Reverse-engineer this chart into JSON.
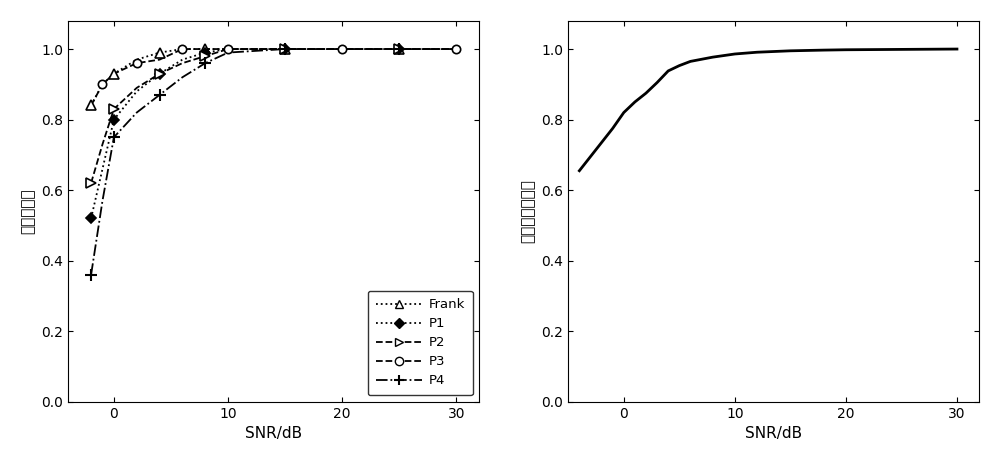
{
  "snr_pts": [
    -2,
    -1,
    0,
    2,
    4,
    6,
    8,
    10,
    15,
    20,
    25,
    30
  ],
  "frank_pts": [
    0.84,
    0.9,
    0.93,
    0.97,
    0.99,
    1.0,
    1.0,
    1.0,
    1.0,
    1.0,
    1.0,
    1.0
  ],
  "p1_pts": [
    0.52,
    0.66,
    0.8,
    0.88,
    0.93,
    0.97,
    0.99,
    1.0,
    1.0,
    1.0,
    1.0,
    1.0
  ],
  "p2_pts": [
    0.62,
    0.73,
    0.83,
    0.89,
    0.93,
    0.96,
    0.98,
    1.0,
    1.0,
    1.0,
    1.0,
    1.0
  ],
  "p3_pts": [
    0.84,
    0.9,
    0.93,
    0.96,
    0.97,
    1.0,
    1.0,
    1.0,
    1.0,
    1.0,
    1.0,
    1.0
  ],
  "p4_pts": [
    0.36,
    0.57,
    0.75,
    0.82,
    0.87,
    0.92,
    0.96,
    0.99,
    1.0,
    1.0,
    1.0,
    1.0
  ],
  "snr2": [
    -4,
    -3,
    -2,
    -1,
    0,
    1,
    2,
    3,
    4,
    5,
    6,
    8,
    10,
    12,
    15,
    18,
    20,
    25,
    30
  ],
  "overall": [
    0.655,
    0.695,
    0.735,
    0.775,
    0.82,
    0.85,
    0.875,
    0.905,
    0.938,
    0.953,
    0.965,
    0.977,
    0.986,
    0.991,
    0.995,
    0.997,
    0.998,
    0.999,
    1.0
  ],
  "xlabel": "SNR/dB",
  "ylabel_left": "正确识别率",
  "ylabel_right": "总体正确识别率",
  "ylim": [
    0,
    1.08
  ],
  "xlim_left": [
    -4,
    32
  ],
  "xlim_right": [
    -5,
    32
  ],
  "xticks_left": [
    0,
    10,
    20,
    30
  ],
  "xticks_right": [
    0,
    10,
    20,
    30
  ],
  "yticks": [
    0,
    0.2,
    0.4,
    0.6,
    0.8,
    1.0
  ],
  "line_color": "#000000",
  "legend_labels": [
    "Frank",
    "P1",
    "P2",
    "P3",
    "P4"
  ],
  "bg_color": "#f0f0f0"
}
